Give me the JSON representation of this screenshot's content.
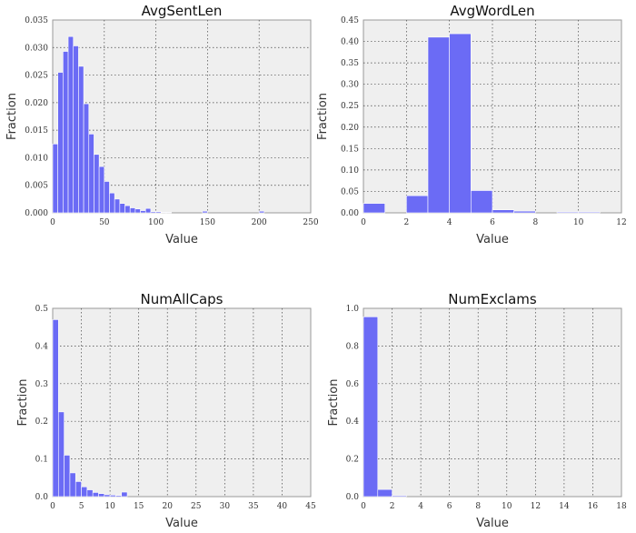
{
  "chart_data": [
    {
      "type": "bar",
      "title": "AvgSentLen",
      "xlabel": "Value",
      "ylabel": "Fraction",
      "xlim": [
        0,
        250
      ],
      "ylim": [
        0,
        0.035
      ],
      "xticks": [
        0,
        50,
        100,
        150,
        200,
        250
      ],
      "yticks": [
        0.0,
        0.005,
        0.01,
        0.015,
        0.02,
        0.025,
        0.03,
        0.035
      ],
      "ytick_labels": [
        "0.000",
        "0.005",
        "0.010",
        "0.015",
        "0.020",
        "0.025",
        "0.030",
        "0.035"
      ],
      "grid": true,
      "bin_width": 5,
      "bins": [
        0,
        5,
        10,
        15,
        20,
        25,
        30,
        35,
        40,
        45,
        50,
        55,
        60,
        65,
        70,
        75,
        80,
        85,
        90,
        95,
        100,
        105,
        110,
        145,
        200
      ],
      "values": [
        0.0125,
        0.0255,
        0.0293,
        0.032,
        0.0303,
        0.0266,
        0.0198,
        0.0143,
        0.0106,
        0.0084,
        0.0057,
        0.0036,
        0.0025,
        0.0017,
        0.0013,
        0.0009,
        0.0007,
        0.0004,
        0.0008,
        0.0002,
        0.0002,
        0.0001,
        0.0001,
        0.0003,
        0.0003
      ]
    },
    {
      "type": "bar",
      "title": "AvgWordLen",
      "xlabel": "Value",
      "ylabel": "Fraction",
      "xlim": [
        0,
        12
      ],
      "ylim": [
        0,
        0.45
      ],
      "xticks": [
        0,
        2,
        4,
        6,
        8,
        10,
        12
      ],
      "yticks": [
        0.0,
        0.05,
        0.1,
        0.15,
        0.2,
        0.25,
        0.3,
        0.35,
        0.4,
        0.45
      ],
      "ytick_labels": [
        "0.00",
        "0.05",
        "0.10",
        "0.15",
        "0.20",
        "0.25",
        "0.30",
        "0.35",
        "0.40",
        "0.45"
      ],
      "grid": true,
      "bin_width": 1,
      "bins": [
        0,
        1,
        2,
        3,
        4,
        5,
        6,
        7,
        8,
        9,
        10
      ],
      "values": [
        0.022,
        0.0,
        0.04,
        0.41,
        0.418,
        0.052,
        0.007,
        0.004,
        0.0,
        0.002,
        0.002
      ]
    },
    {
      "type": "bar",
      "title": "NumAllCaps",
      "xlabel": "Value",
      "ylabel": "Fraction",
      "xlim": [
        0,
        45
      ],
      "ylim": [
        0,
        0.5
      ],
      "xticks": [
        0,
        5,
        10,
        15,
        20,
        25,
        30,
        35,
        40,
        45
      ],
      "yticks": [
        0.0,
        0.1,
        0.2,
        0.3,
        0.4,
        0.5
      ],
      "ytick_labels": [
        "0.0",
        "0.1",
        "0.2",
        "0.3",
        "0.4",
        "0.5"
      ],
      "grid": true,
      "bin_width": 1,
      "bins": [
        0,
        1,
        2,
        3,
        4,
        5,
        6,
        7,
        8,
        9,
        10,
        11,
        12
      ],
      "values": [
        0.47,
        0.225,
        0.11,
        0.063,
        0.04,
        0.026,
        0.018,
        0.011,
        0.008,
        0.005,
        0.004,
        0.003,
        0.012
      ]
    },
    {
      "type": "bar",
      "title": "NumExclams",
      "xlabel": "Value",
      "ylabel": "Fraction",
      "xlim": [
        0,
        18
      ],
      "ylim": [
        0,
        1.0
      ],
      "xticks": [
        0,
        2,
        4,
        6,
        8,
        10,
        12,
        14,
        16,
        18
      ],
      "yticks": [
        0.0,
        0.2,
        0.4,
        0.6,
        0.8,
        1.0
      ],
      "ytick_labels": [
        "0.0",
        "0.2",
        "0.4",
        "0.6",
        "0.8",
        "1.0"
      ],
      "grid": true,
      "bin_width": 1,
      "bins": [
        0,
        1,
        2
      ],
      "values": [
        0.955,
        0.038,
        0.005
      ]
    }
  ]
}
